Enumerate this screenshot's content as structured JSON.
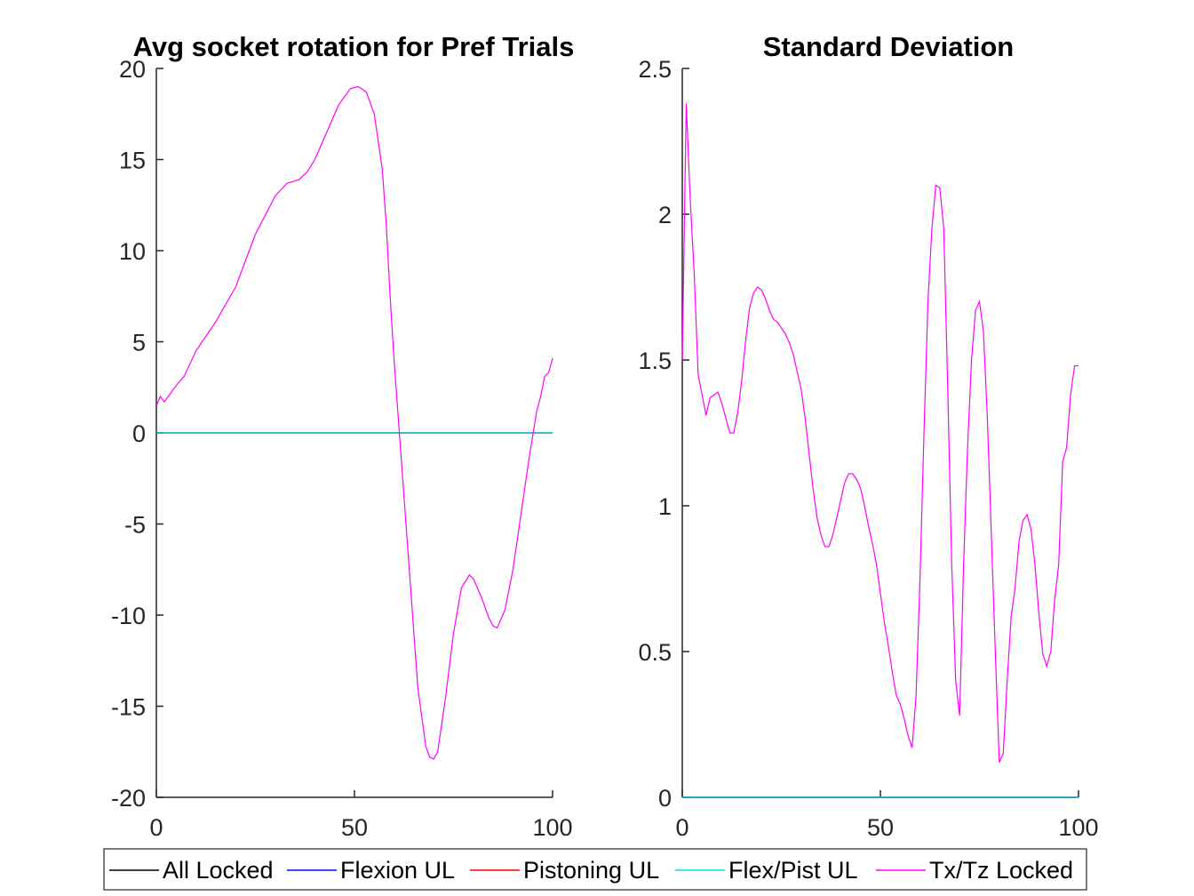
{
  "chart_data": [
    {
      "type": "line",
      "title": "Avg socket rotation for Pref Trials",
      "xlabel": "",
      "ylabel": "",
      "xlim": [
        0,
        100
      ],
      "ylim": [
        -20,
        20
      ],
      "xticks": [
        0,
        50,
        100
      ],
      "yticks": [
        -20,
        -15,
        -10,
        -5,
        0,
        5,
        10,
        15,
        20
      ],
      "xtick_labels": [
        "0",
        "50",
        "100"
      ],
      "ytick_labels": [
        "-20",
        "-15",
        "-10",
        "-5",
        "0",
        "5",
        "10",
        "15",
        "20"
      ],
      "grid": false,
      "series": [
        {
          "name": "All Locked",
          "color": "#000000",
          "x": [
            0,
            100
          ],
          "y": [
            0,
            0
          ]
        },
        {
          "name": "Flexion UL",
          "color": "#0000ff",
          "x": [
            0,
            100
          ],
          "y": [
            0,
            0
          ]
        },
        {
          "name": "Pistoning UL",
          "color": "#ff0000",
          "x": [
            0,
            100
          ],
          "y": [
            0,
            0
          ]
        },
        {
          "name": "Flex/Pist UL",
          "color": "#00e5ee",
          "x": [
            0,
            100
          ],
          "y": [
            0,
            0
          ]
        },
        {
          "name": "Tx/Tz Locked",
          "color": "#ff00ff",
          "x": [
            0,
            1,
            2,
            3,
            5,
            7,
            10,
            15,
            20,
            25,
            30,
            33,
            36,
            38,
            40,
            43,
            46,
            49,
            51,
            53,
            55,
            57,
            58,
            59,
            60,
            62,
            64,
            66,
            68,
            69,
            70,
            71,
            73,
            75,
            77,
            79,
            80,
            82,
            84,
            85,
            86,
            88,
            90,
            92,
            94,
            96,
            97,
            98,
            99,
            100
          ],
          "y": [
            1.5,
            2.0,
            1.7,
            2.0,
            2.6,
            3.1,
            4.5,
            6.1,
            8.0,
            10.9,
            13.0,
            13.7,
            13.9,
            14.3,
            15.0,
            16.5,
            18.0,
            18.9,
            19.0,
            18.7,
            17.5,
            14.5,
            11.5,
            7.5,
            4.0,
            -2.0,
            -8.0,
            -14.0,
            -17.2,
            -17.8,
            -17.9,
            -17.5,
            -14.5,
            -11.0,
            -8.5,
            -7.8,
            -8.0,
            -9.0,
            -10.2,
            -10.6,
            -10.7,
            -9.7,
            -7.5,
            -4.5,
            -1.5,
            1.2,
            2.0,
            3.1,
            3.3,
            4.1
          ]
        }
      ]
    },
    {
      "type": "line",
      "title": "Standard Deviation",
      "xlabel": "",
      "ylabel": "",
      "xlim": [
        0,
        100
      ],
      "ylim": [
        0,
        2.5
      ],
      "xticks": [
        0,
        50,
        100
      ],
      "yticks": [
        0,
        0.5,
        1,
        1.5,
        2,
        2.5
      ],
      "xtick_labels": [
        "0",
        "50",
        "100"
      ],
      "ytick_labels": [
        "0",
        "0.5",
        "1",
        "1.5",
        "2",
        "2.5"
      ],
      "grid": false,
      "series": [
        {
          "name": "All Locked",
          "color": "#000000",
          "x": [
            0,
            100
          ],
          "y": [
            0,
            0
          ]
        },
        {
          "name": "Flexion UL",
          "color": "#0000ff",
          "x": [
            0,
            100
          ],
          "y": [
            0,
            0
          ]
        },
        {
          "name": "Pistoning UL",
          "color": "#ff0000",
          "x": [
            0,
            100
          ],
          "y": [
            0,
            0
          ]
        },
        {
          "name": "Flex/Pist UL",
          "color": "#00e5ee",
          "x": [
            0,
            100
          ],
          "y": [
            0,
            0
          ]
        },
        {
          "name": "Tx/Tz Locked",
          "color": "#ff00ff",
          "x": [
            0,
            1,
            2,
            3,
            4,
            5,
            6,
            7,
            8,
            9,
            10,
            11,
            12,
            13,
            14,
            15,
            16,
            17,
            18,
            19,
            20,
            21,
            22,
            23,
            24,
            25,
            26,
            27,
            28,
            29,
            30,
            31,
            32,
            33,
            34,
            35,
            36,
            37,
            38,
            39,
            40,
            41,
            42,
            43,
            44,
            45,
            46,
            47,
            48,
            49,
            50,
            51,
            52,
            53,
            54,
            55,
            56,
            57,
            58,
            59,
            60,
            61,
            62,
            63,
            64,
            65,
            66,
            67,
            68,
            69,
            70,
            71,
            72,
            73,
            74,
            75,
            76,
            77,
            78,
            79,
            80,
            81,
            82,
            83,
            84,
            85,
            86,
            87,
            88,
            89,
            90,
            91,
            92,
            93,
            94,
            95,
            96,
            97,
            98,
            99,
            100
          ],
          "y": [
            1.5,
            2.38,
            2.05,
            1.8,
            1.45,
            1.38,
            1.31,
            1.37,
            1.38,
            1.39,
            1.35,
            1.3,
            1.25,
            1.25,
            1.32,
            1.43,
            1.57,
            1.68,
            1.73,
            1.75,
            1.74,
            1.71,
            1.67,
            1.64,
            1.63,
            1.61,
            1.59,
            1.56,
            1.52,
            1.46,
            1.4,
            1.3,
            1.18,
            1.06,
            0.96,
            0.9,
            0.86,
            0.86,
            0.9,
            0.96,
            1.02,
            1.08,
            1.11,
            1.11,
            1.09,
            1.06,
            1.0,
            0.93,
            0.87,
            0.8,
            0.7,
            0.6,
            0.52,
            0.43,
            0.35,
            0.32,
            0.27,
            0.21,
            0.17,
            0.35,
            0.75,
            1.25,
            1.7,
            1.95,
            2.1,
            2.09,
            1.95,
            1.4,
            0.8,
            0.4,
            0.28,
            0.8,
            1.2,
            1.5,
            1.67,
            1.7,
            1.6,
            1.3,
            0.9,
            0.5,
            0.12,
            0.15,
            0.4,
            0.62,
            0.72,
            0.88,
            0.95,
            0.97,
            0.92,
            0.8,
            0.63,
            0.49,
            0.45,
            0.5,
            0.68,
            0.8,
            1.15,
            1.2,
            1.38,
            1.48,
            1.48
          ]
        }
      ]
    }
  ],
  "legend": {
    "placement": "bottom",
    "entries": [
      {
        "label": "All Locked",
        "color": "#000000"
      },
      {
        "label": "Flexion UL",
        "color": "#0000ff"
      },
      {
        "label": "Pistoning UL",
        "color": "#ff0000"
      },
      {
        "label": "Flex/Pist UL",
        "color": "#00e5ee"
      },
      {
        "label": "Tx/Tz Locked",
        "color": "#ff00ff"
      }
    ]
  }
}
